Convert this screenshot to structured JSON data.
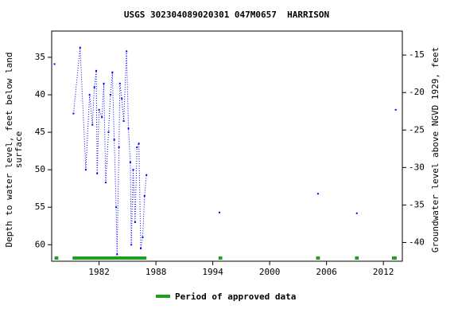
{
  "chart_data": {
    "type": "line",
    "title": "USGS 302304089020301 047M0657  HARRISON",
    "ylabel_lines": [
      "Depth to water level, feet below land",
      "surface"
    ],
    "y2label": "Groundwater level above NGVD 1929, feet",
    "x": [
      1977.3,
      null,
      1979.3,
      1980.0,
      1980.6,
      1981.0,
      1981.3,
      1981.5,
      1981.7,
      1981.8,
      1982.0,
      1982.3,
      1982.5,
      1982.7,
      1983.0,
      1983.2,
      1983.4,
      1983.6,
      1983.8,
      1983.9,
      1984.1,
      1984.2,
      1984.4,
      1984.6,
      1984.9,
      1985.1,
      1985.3,
      1985.4,
      1985.6,
      1985.8,
      1986.0,
      1986.2,
      1986.4,
      1986.6,
      1986.8,
      1987.0,
      null,
      1994.7,
      null,
      2005.1,
      null,
      2009.2,
      null,
      2013.3
    ],
    "series": [
      {
        "name": "Depth to water level",
        "color": "#0000ff",
        "values": [
          35.9,
          null,
          42.5,
          33.7,
          50.0,
          40.0,
          44.0,
          39.0,
          36.8,
          50.5,
          42.0,
          43.0,
          38.5,
          51.7,
          45.0,
          40.0,
          37.0,
          46.0,
          55.0,
          61.3,
          47.0,
          38.5,
          40.5,
          43.5,
          34.2,
          44.5,
          49.0,
          60.0,
          50.0,
          57.0,
          47.0,
          46.5,
          60.5,
          59.0,
          53.5,
          50.7,
          null,
          55.7,
          null,
          53.2,
          null,
          55.8,
          null,
          42.0
        ]
      }
    ],
    "xlim": [
      1977.0,
      2014.0
    ],
    "xticks": [
      1982,
      1988,
      1994,
      2000,
      2006,
      2012
    ],
    "ylim": [
      31.5,
      62.2
    ],
    "yticks": [
      35,
      40,
      45,
      50,
      55,
      60
    ],
    "y2lim": [
      -11.8,
      -42.5
    ],
    "y2ticks": [
      -15,
      -20,
      -25,
      -30,
      -35,
      -40
    ],
    "approved_periods": [
      [
        1977.3,
        1977.7
      ],
      [
        1979.2,
        1987.0
      ],
      [
        1994.6,
        1995.0
      ],
      [
        2004.9,
        2005.3
      ],
      [
        2009.0,
        2009.4
      ],
      [
        2012.9,
        2013.4
      ]
    ],
    "approved_color": "#1f9f1f",
    "legend": "Period of approved data"
  }
}
